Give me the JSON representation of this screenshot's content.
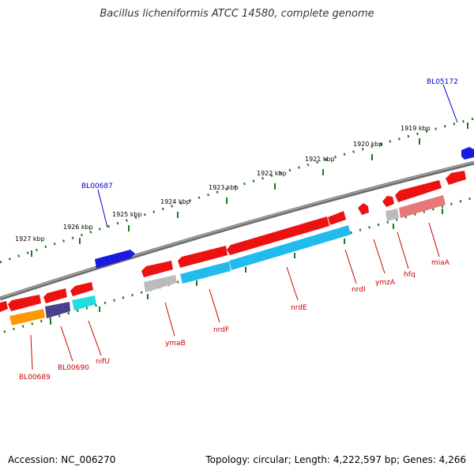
{
  "title": "Bacillus licheniformis ATCC 14580, complete genome",
  "footer": {
    "accession": "Accession: NC_006270",
    "summary": "Topology: circular; Length: 4,222,597 bp; Genes: 4,266"
  },
  "colors": {
    "backbone": "#7f7f7f",
    "tick": "#1a7a1a",
    "red_gene": "#ee1111",
    "blue_gene": "#1a1ae0",
    "cyan_gene": "#22bbee",
    "orange_gene": "#ff9900",
    "purple_gene": "#4a3f8c",
    "gray_gene": "#bbbbbb",
    "pink_gene": "#e87777",
    "label_red": "#cc0000",
    "label_blue": "#0000cc"
  },
  "ruler": {
    "outer_labels": [
      "1919 kbp",
      "1920 kbp",
      "1921 kbp",
      "1922 kbp",
      "1923 kbp",
      "1924 kbp",
      "1925 kbp",
      "1926 kbp",
      "1927 kbp"
    ]
  },
  "gene_labels": {
    "bl05172": "BL05172",
    "bl00687": "BL00687",
    "miaA": "miaA",
    "hfq": "hfq",
    "ymzA": "ymzA",
    "nrdI": "nrdI",
    "nrdE": "nrdE",
    "nrdF": "nrdF",
    "ymaB": "ymaB",
    "nifU": "nifU",
    "bl00690": "BL00690",
    "bl00689": "BL00689"
  }
}
